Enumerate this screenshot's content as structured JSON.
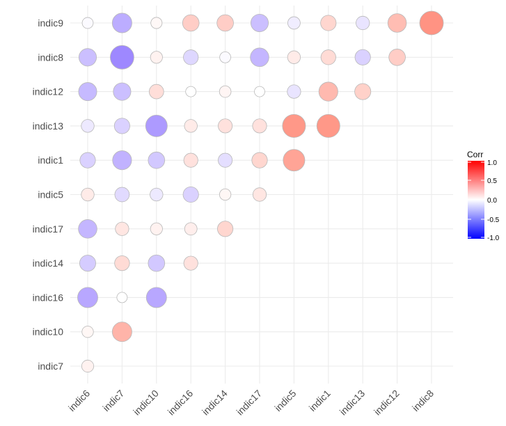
{
  "chart_data": {
    "type": "scatter",
    "subtype": "correlation-circle-matrix",
    "title": "",
    "xlabel": "",
    "ylabel": "",
    "x_categories": [
      "indic6",
      "indic7",
      "indic10",
      "indic16",
      "indic14",
      "indic17",
      "indic5",
      "indic1",
      "indic13",
      "indic12",
      "indic8"
    ],
    "y_categories": [
      "indic9",
      "indic8",
      "indic12",
      "indic13",
      "indic1",
      "indic5",
      "indic17",
      "indic14",
      "indic16",
      "indic10",
      "indic7"
    ],
    "grid": true,
    "legend": {
      "title": "Corr",
      "placement": "right",
      "ticks": [
        "1.0",
        "0.5",
        "0.0",
        "-0.5",
        "-1.0"
      ],
      "tick_values": [
        1.0,
        0.5,
        0.0,
        -0.5,
        -1.0
      ],
      "range": [
        -1,
        1
      ],
      "colors": {
        "low": "#0000ff",
        "mid": "#ffffff",
        "high": "#ff0000"
      }
    },
    "values": {
      "indic9": [
        -0.03,
        -0.45,
        0.04,
        0.3,
        0.3,
        -0.35,
        -0.1,
        0.25,
        -0.15,
        0.4,
        0.65
      ],
      "indic8": [
        -0.35,
        -0.65,
        0.08,
        -0.22,
        -0.03,
        -0.4,
        0.12,
        0.22,
        -0.25,
        0.3,
        null
      ],
      "indic12": [
        -0.38,
        -0.35,
        0.2,
        0.0,
        0.06,
        0.0,
        -0.15,
        0.42,
        0.28,
        null,
        null
      ],
      "indic13": [
        -0.12,
        -0.25,
        -0.55,
        0.12,
        0.18,
        0.18,
        0.62,
        0.62,
        null,
        null,
        null
      ],
      "indic1": [
        -0.25,
        -0.42,
        -0.3,
        0.18,
        -0.18,
        0.25,
        0.55,
        null,
        null,
        null,
        null
      ],
      "indic5": [
        0.12,
        -0.2,
        -0.12,
        -0.25,
        0.05,
        0.15,
        null,
        null,
        null,
        null,
        null
      ],
      "indic17": [
        -0.4,
        0.15,
        0.08,
        0.1,
        0.25,
        null,
        null,
        null,
        null,
        null,
        null
      ],
      "indic14": [
        -0.28,
        0.22,
        -0.3,
        0.18,
        null,
        null,
        null,
        null,
        null,
        null,
        null
      ],
      "indic16": [
        -0.48,
        0.0,
        -0.48,
        null,
        null,
        null,
        null,
        null,
        null,
        null,
        null
      ],
      "indic10": [
        0.05,
        0.45,
        null,
        null,
        null,
        null,
        null,
        null,
        null,
        null,
        null
      ],
      "indic7": [
        0.08,
        null,
        null,
        null,
        null,
        null,
        null,
        null,
        null,
        null,
        null
      ]
    }
  }
}
